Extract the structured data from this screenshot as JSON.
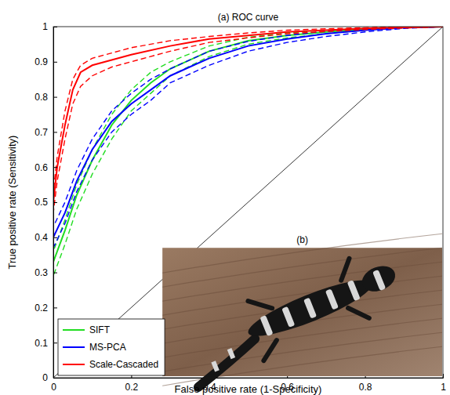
{
  "chart_data": {
    "type": "line",
    "title": "(a) ROC curve",
    "x_label": "False positive rate (1-Specificity)",
    "y_label": "True positive rate (Sensitivity)",
    "inset_label": "(b)",
    "xlim": [
      0,
      1
    ],
    "ylim": [
      0,
      1
    ],
    "xticks": [
      0,
      0.2,
      0.4,
      0.6,
      0.8,
      1
    ],
    "yticks": [
      0,
      0.1,
      0.2,
      0.3,
      0.4,
      0.5,
      0.6,
      0.7,
      0.8,
      0.9,
      1
    ],
    "grid": false,
    "legend": "lower left",
    "line_style": "solid",
    "diagonal": {
      "x": [
        0,
        1
      ],
      "values": [
        0,
        1
      ],
      "color": "#000000"
    },
    "series": [
      {
        "name": "SIFT",
        "color": "#22dd22",
        "x": [
          0,
          0,
          0.03,
          0.06,
          0.1,
          0.15,
          0.2,
          0.25,
          0.3,
          0.4,
          0.5,
          0.6,
          0.7,
          0.8,
          0.9,
          1
        ],
        "values": [
          0,
          0.33,
          0.42,
          0.52,
          0.62,
          0.72,
          0.79,
          0.84,
          0.88,
          0.93,
          0.96,
          0.975,
          0.985,
          0.993,
          0.998,
          1
        ],
        "upper": [
          0,
          0.36,
          0.45,
          0.55,
          0.65,
          0.75,
          0.82,
          0.87,
          0.9,
          0.945,
          0.97,
          0.982,
          0.99,
          0.996,
          0.999,
          1
        ],
        "lower": [
          0,
          0.29,
          0.38,
          0.48,
          0.58,
          0.68,
          0.76,
          0.81,
          0.86,
          0.915,
          0.95,
          0.968,
          0.98,
          0.99,
          0.997,
          1
        ]
      },
      {
        "name": "MS-PCA",
        "color": "#0000ff",
        "x": [
          0,
          0,
          0.03,
          0.06,
          0.1,
          0.15,
          0.2,
          0.25,
          0.3,
          0.4,
          0.5,
          0.6,
          0.7,
          0.8,
          0.9,
          1
        ],
        "values": [
          0,
          0.4,
          0.47,
          0.56,
          0.65,
          0.73,
          0.78,
          0.82,
          0.86,
          0.91,
          0.945,
          0.965,
          0.98,
          0.99,
          0.997,
          1
        ],
        "upper": [
          0,
          0.43,
          0.5,
          0.59,
          0.68,
          0.76,
          0.81,
          0.85,
          0.88,
          0.93,
          0.958,
          0.975,
          0.987,
          0.994,
          0.999,
          1
        ],
        "lower": [
          0,
          0.37,
          0.44,
          0.53,
          0.62,
          0.7,
          0.75,
          0.79,
          0.84,
          0.89,
          0.93,
          0.955,
          0.972,
          0.985,
          0.995,
          1
        ]
      },
      {
        "name": "Scale-Cascaded",
        "color": "#ff0000",
        "x": [
          0,
          0,
          0.01,
          0.03,
          0.05,
          0.07,
          0.1,
          0.15,
          0.2,
          0.3,
          0.4,
          0.5,
          0.6,
          0.7,
          0.8,
          0.9,
          1
        ],
        "values": [
          0,
          0.5,
          0.6,
          0.72,
          0.82,
          0.87,
          0.89,
          0.905,
          0.92,
          0.945,
          0.965,
          0.975,
          0.985,
          0.99,
          0.995,
          0.998,
          1
        ],
        "upper": [
          0,
          0.53,
          0.63,
          0.76,
          0.85,
          0.89,
          0.91,
          0.925,
          0.94,
          0.96,
          0.972,
          0.982,
          0.99,
          0.994,
          0.997,
          0.999,
          1
        ],
        "lower": [
          0,
          0.47,
          0.56,
          0.68,
          0.78,
          0.83,
          0.86,
          0.885,
          0.9,
          0.93,
          0.955,
          0.968,
          0.98,
          0.986,
          0.992,
          0.996,
          1
        ]
      }
    ]
  }
}
